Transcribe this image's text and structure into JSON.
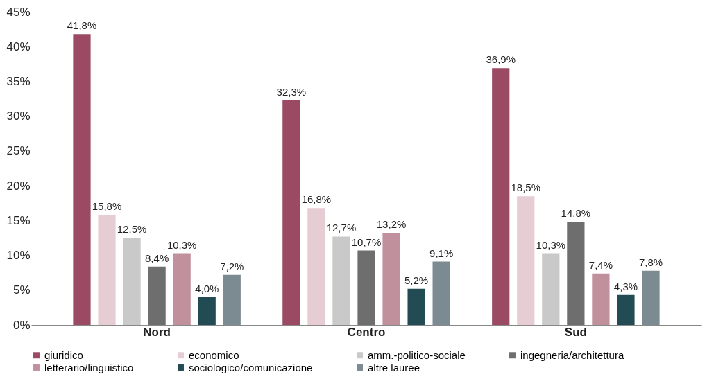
{
  "chart_data": {
    "type": "bar",
    "categories": [
      "Nord",
      "Centro",
      "Sud"
    ],
    "series": [
      {
        "name": "giuridico",
        "color": "#9a4a63",
        "values": [
          41.8,
          32.3,
          36.9
        ],
        "value_labels": [
          "41,8%",
          "32,3%",
          "36,9%"
        ]
      },
      {
        "name": "economico",
        "color": "#e6cdd4",
        "values": [
          15.8,
          16.8,
          18.5
        ],
        "value_labels": [
          "15,8%",
          "16,8%",
          "18,5%"
        ]
      },
      {
        "name": "amm.-politico-sociale",
        "color": "#c9c9c9",
        "values": [
          12.5,
          12.7,
          10.3
        ],
        "value_labels": [
          "12,5%",
          "12,7%",
          "10,3%"
        ]
      },
      {
        "name": "ingegneria/architettura",
        "color": "#6e6e6e",
        "values": [
          8.4,
          10.7,
          14.8
        ],
        "value_labels": [
          "8,4%",
          "10,7%",
          "14,8%"
        ]
      },
      {
        "name": "letterario/linguistico",
        "color": "#c1909d",
        "values": [
          10.3,
          13.2,
          7.4
        ],
        "value_labels": [
          "10,3%",
          "13,2%",
          "7,4%"
        ]
      },
      {
        "name": "sociologico/comunicazione",
        "color": "#234b53",
        "values": [
          4.0,
          5.2,
          4.3
        ],
        "value_labels": [
          "4,0%",
          "5,2%",
          "4,3%"
        ]
      },
      {
        "name": "altre lauree",
        "color": "#7b8b91",
        "values": [
          7.2,
          9.1,
          7.8
        ],
        "value_labels": [
          "7,2%",
          "9,1%",
          "7,8%"
        ]
      }
    ],
    "ylim": [
      0,
      45
    ],
    "yticks": [
      {
        "value": 0,
        "label": "0%"
      },
      {
        "value": 5,
        "label": "5%"
      },
      {
        "value": 10,
        "label": "10%"
      },
      {
        "value": 15,
        "label": "15%"
      },
      {
        "value": 20,
        "label": "20%"
      },
      {
        "value": 25,
        "label": "25%"
      },
      {
        "value": 30,
        "label": "30%"
      },
      {
        "value": 35,
        "label": "35%"
      },
      {
        "value": 40,
        "label": "40%"
      },
      {
        "value": 45,
        "label": "45%"
      }
    ],
    "grid": false,
    "legend": "bottom"
  }
}
